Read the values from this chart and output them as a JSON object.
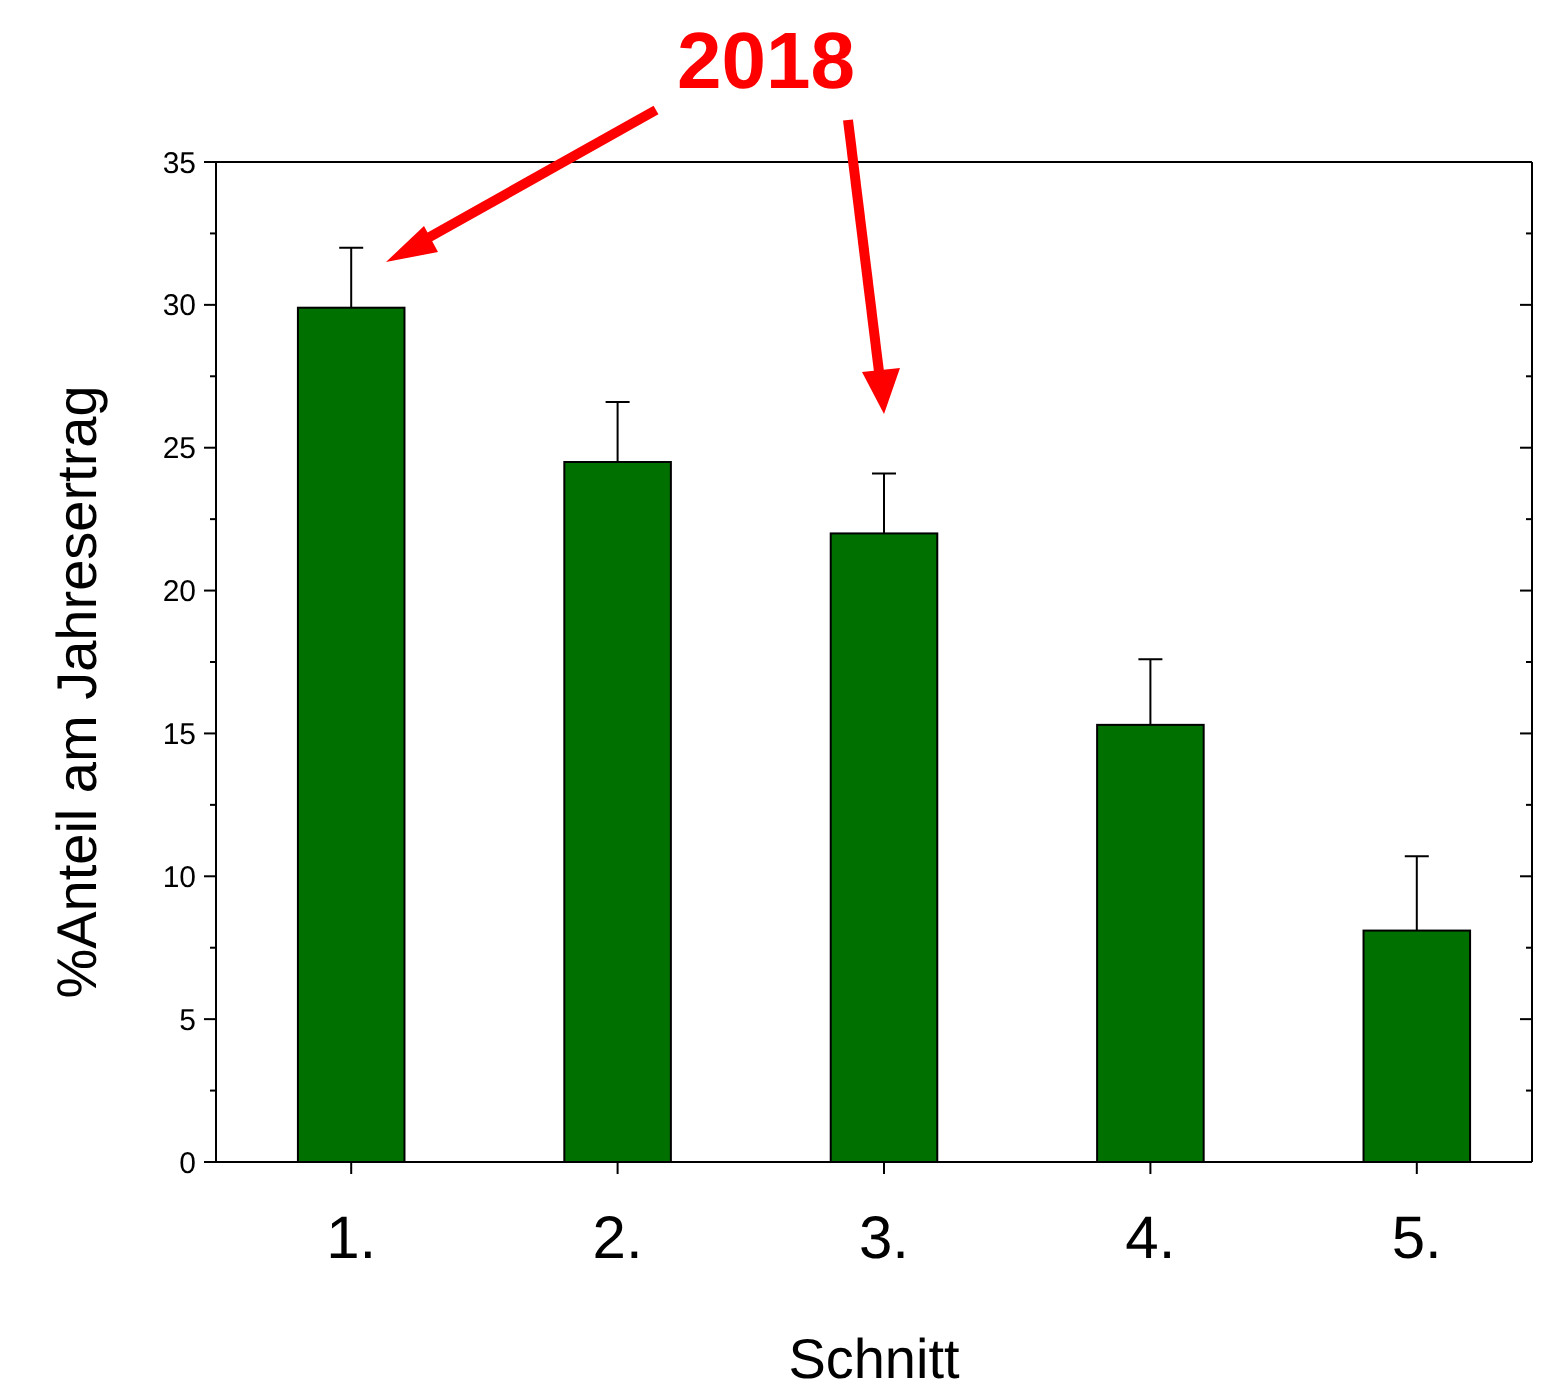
{
  "chart_data": {
    "type": "bar",
    "xlabel": "Schnitt",
    "ylabel": "%Anteil am Jahresertrag",
    "annotations": [
      "2018"
    ],
    "categories": [
      "1.",
      "2.",
      "3.",
      "4.",
      "5."
    ],
    "values": [
      29.9,
      24.5,
      22.0,
      15.3,
      8.1
    ],
    "errors": [
      [
        29.9,
        32.0
      ],
      [
        24.5,
        26.6
      ],
      [
        22.0,
        24.1
      ],
      [
        15.3,
        17.6
      ],
      [
        8.1,
        10.7
      ]
    ],
    "color": "#007000",
    "ylim": [
      0,
      35
    ],
    "yticks": [
      0,
      5,
      10,
      15,
      20,
      25,
      30,
      35
    ],
    "grid": false
  }
}
